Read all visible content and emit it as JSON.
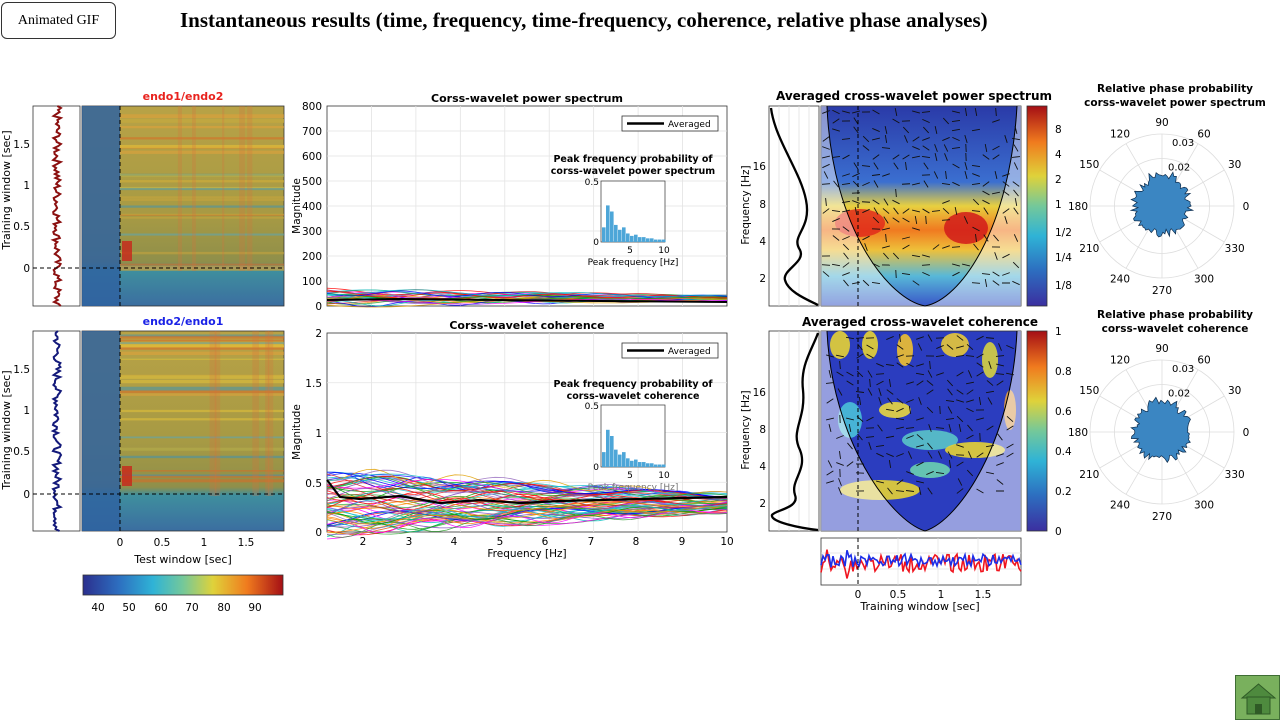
{
  "header": {
    "gif_label": "Animated  GIF",
    "title": "Instantaneous results (time, frequency, time-frequency, coherence, relative phase analyses)"
  },
  "heatmaps": {
    "top_title": "endo1/endo2",
    "bottom_title": "endo2/endo1",
    "top_title_color": "#e8231e",
    "bottom_title_color": "#1a22e6",
    "ylabel": "Training window [sec]",
    "xlabel": "Test window [sec]",
    "yticks": [
      "1.5",
      "1",
      "0.5",
      "0"
    ],
    "xticks": [
      "0",
      "0.5",
      "1",
      "1.5"
    ],
    "colorbar_ticks": [
      "40",
      "50",
      "60",
      "70",
      "80",
      "90"
    ]
  },
  "power_panel": {
    "title": "Corss-wavelet power spectrum",
    "ylabel": "Magnitude",
    "yticks": [
      "800",
      "700",
      "600",
      "500",
      "400",
      "300",
      "200",
      "100",
      "0"
    ],
    "legend": "Averaged",
    "inset_title_1": "Peak frequency probability of",
    "inset_title_2": "corss-wavelet power spectrum",
    "inset_yticks": [
      "0.5",
      "0"
    ],
    "inset_xticks": [
      "5",
      "10"
    ],
    "inset_xlabel": "Peak frequency [Hz]"
  },
  "coherence_panel": {
    "title": "Corss-wavelet coherence",
    "ylabel": "Magnitude",
    "xlabel": "Frequency [Hz]",
    "yticks": [
      "2",
      "1.5",
      "1",
      "0.5",
      "0"
    ],
    "xticks": [
      "2",
      "3",
      "4",
      "5",
      "6",
      "7",
      "8",
      "9",
      "10"
    ],
    "legend": "Averaged",
    "inset_title_1": "Peak frequency probability of",
    "inset_title_2": "corss-wavelet coherence",
    "inset_yticks": [
      "0.5",
      "0"
    ],
    "inset_xticks": [
      "5",
      "10"
    ],
    "inset_xlabel": "Peak frequency [Hz]"
  },
  "wavelet_power": {
    "title": "Averaged cross-wavelet power spectrum",
    "ylabel": "Frequency [Hz]",
    "yticks": [
      "16",
      "8",
      "4",
      "2"
    ],
    "colorbar_ticks": [
      "8",
      "4",
      "2",
      "1",
      "1/2",
      "1/4",
      "1/8"
    ]
  },
  "wavelet_coherence": {
    "title": "Averaged cross-wavelet coherence",
    "ylabel": "Frequency [Hz]",
    "yticks": [
      "16",
      "8",
      "4",
      "2"
    ],
    "colorbar_ticks": [
      "1",
      "0.8",
      "0.6",
      "0.4",
      "0.2",
      "0"
    ]
  },
  "timeseries": {
    "xlabel": "Training window [sec]",
    "xticks": [
      "0",
      "0.5",
      "1",
      "1.5"
    ]
  },
  "polar_power": {
    "title_1": "Relative phase probability",
    "title_2": "corss-wavelet power spectrum",
    "radial_ticks": [
      "0.03",
      "0.02"
    ],
    "angle_labels": [
      "90",
      "60",
      "30",
      "0",
      "330",
      "300",
      "270",
      "240",
      "210",
      "180",
      "150",
      "120"
    ]
  },
  "polar_coherence": {
    "title_1": "Relative phase probability",
    "title_2": "corss-wavelet coherence",
    "radial_ticks": [
      "0.03",
      "0.02"
    ],
    "angle_labels": [
      "90",
      "60",
      "30",
      "0",
      "330",
      "300",
      "270",
      "240",
      "210",
      "180",
      "150",
      "120"
    ]
  },
  "colors": {
    "jet_blue": "#2a3a9e",
    "jet_teal": "#3f8fb0",
    "jet_yellow": "#e0d040",
    "jet_red": "#c41a1a",
    "bar": "#4da6d8",
    "polar_fill": "#3b86c2"
  }
}
